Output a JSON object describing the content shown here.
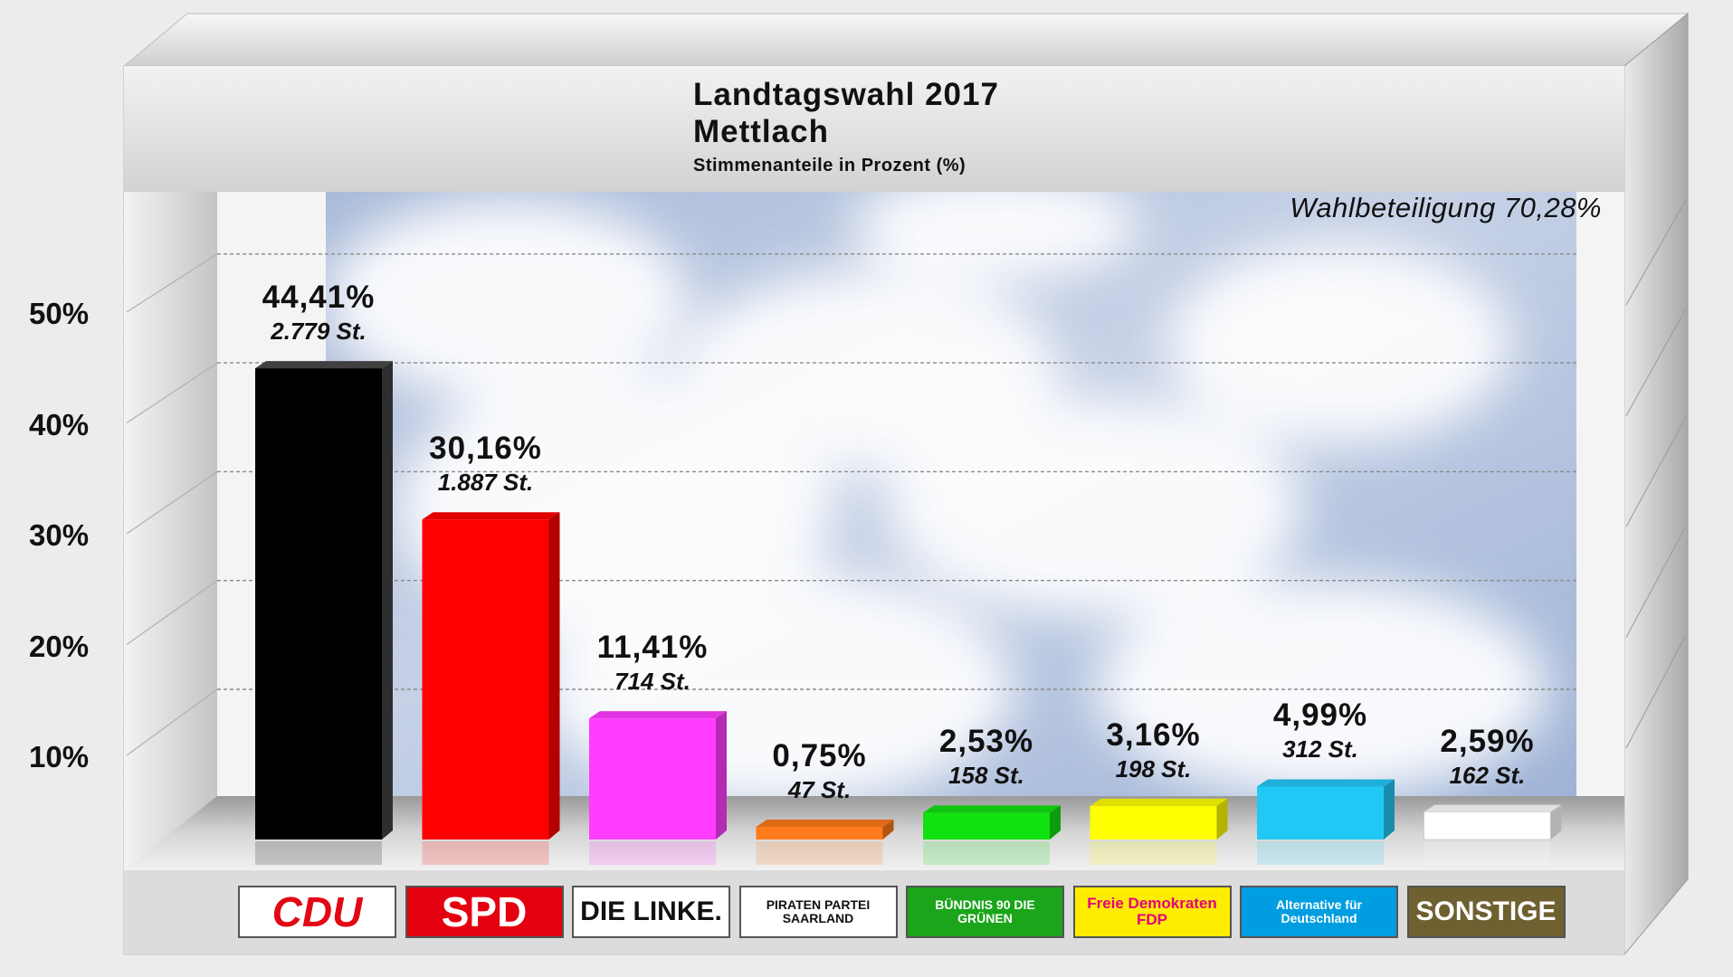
{
  "header": {
    "title_line1": "Landtagswahl 2017",
    "title_line2": "Mettlach",
    "subtitle": "Stimmenanteile in Prozent (%)"
  },
  "turnout_label": "Wahlbeteiligung 70,28%",
  "chart_data": {
    "type": "bar",
    "title": "Landtagswahl 2017 Mettlach",
    "subtitle": "Stimmenanteile in Prozent (%)",
    "categories": [
      "CDU",
      "SPD",
      "DIE LINKE.",
      "PIRATEN PARTEI SAARLAND",
      "BÜNDNIS 90 DIE GRÜNEN",
      "Freie Demokraten FDP",
      "Alternative für Deutschland",
      "SONSTIGE"
    ],
    "values": [
      44.41,
      30.16,
      11.41,
      0.75,
      2.53,
      3.16,
      4.99,
      2.59
    ],
    "value_labels": [
      "44,41%",
      "30,16%",
      "11,41%",
      "0,75%",
      "2,53%",
      "3,16%",
      "4,99%",
      "2,59%"
    ],
    "votes_labels": [
      "2.779 St.",
      "1.887 St.",
      "714 St.",
      "47 St.",
      "158 St.",
      "198 St.",
      "312 St.",
      "162 St."
    ],
    "colors": [
      "#000000",
      "#ff0000",
      "#ff3cff",
      "#ff7a1a",
      "#11e011",
      "#ffff00",
      "#22c8f5",
      "#ffffff"
    ],
    "y_ticks": [
      "10%",
      "20%",
      "30%",
      "40%",
      "50%"
    ],
    "ylim": [
      0,
      55
    ],
    "grid": true,
    "xlabel": "",
    "ylabel": ""
  },
  "logos": [
    {
      "text": "CDU",
      "bg": "#ffffff",
      "fg": "#e30613"
    },
    {
      "text": "SPD",
      "bg": "#e3000f",
      "fg": "#ffffff"
    },
    {
      "text": "DIE LINKE.",
      "bg": "#ffffff",
      "fg": "#111111"
    },
    {
      "text": "PIRATEN PARTEI SAARLAND",
      "bg": "#ffffff",
      "fg": "#111111"
    },
    {
      "text": "BÜNDNIS 90 DIE GRÜNEN",
      "bg": "#1aa51a",
      "fg": "#ffffff"
    },
    {
      "text": "Freie Demokraten FDP",
      "bg": "#ffed00",
      "fg": "#e5007d"
    },
    {
      "text": "Alternative für Deutschland",
      "bg": "#009ee0",
      "fg": "#ffffff"
    },
    {
      "text": "SONSTIGE",
      "bg": "#6e6030",
      "fg": "#ffffff"
    }
  ]
}
